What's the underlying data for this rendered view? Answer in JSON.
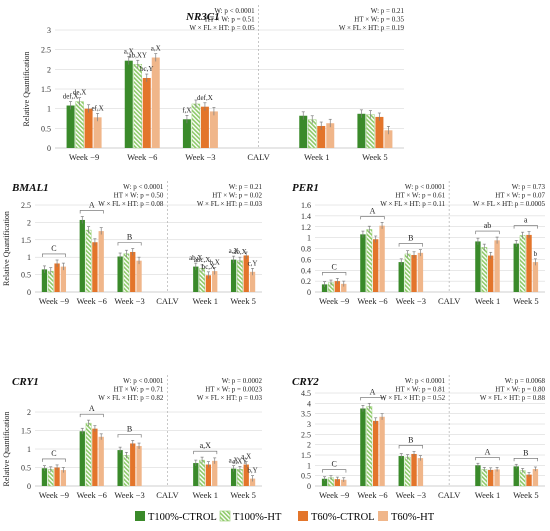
{
  "colors": {
    "T100%-CTROL": "#3a8a2a",
    "T100%-HT": "#8fca6a",
    "T60%-CTROL": "#e3752b",
    "T60%-HT": "#f0b68a",
    "errorbar": "#7f7f7f",
    "grid": "#d0d0d0",
    "axis": "#bfbfbf"
  },
  "legend": {
    "items": [
      {
        "key": "T100%-CTROL",
        "label": "T100%-CTROL",
        "pattern": "solid"
      },
      {
        "key": "T100%-HT",
        "label": "T100%-HT",
        "pattern": "hatch"
      },
      {
        "key": "T60%-CTROL",
        "label": "T60%-CTROL",
        "pattern": "solid"
      },
      {
        "key": "T60%-HT",
        "label": "T60%-HT",
        "pattern": "solid"
      }
    ]
  },
  "chart_data": [
    {
      "type": "bar",
      "title": "NR3C1",
      "ylabel": "Relative Quantification",
      "categories": [
        "Week −9",
        "Week −6",
        "Week −3",
        "CALV",
        "Week 1",
        "Week 5"
      ],
      "ylim": [
        0,
        3
      ],
      "yticks": [
        "0",
        "0.5",
        "1",
        "1.5",
        "2",
        "2.5",
        "3"
      ],
      "yticks_values": [
        0,
        0.5,
        1,
        1.5,
        2,
        2.5,
        3
      ],
      "grid": true,
      "series": [
        {
          "name": "T100%-CTROL",
          "values": [
            1.08,
            2.22,
            0.73,
            null,
            0.82,
            0.87
          ],
          "errors": [
            0.1,
            0.1,
            0.1,
            null,
            0.1,
            0.1
          ]
        },
        {
          "name": "T100%-HT",
          "values": [
            1.18,
            2.13,
            1.12,
            null,
            0.72,
            0.85
          ],
          "errors": [
            0.1,
            0.1,
            0.1,
            null,
            0.1,
            0.1
          ]
        },
        {
          "name": "T60%-CTROL",
          "values": [
            1.0,
            1.78,
            1.05,
            null,
            0.56,
            0.79
          ],
          "errors": [
            0.1,
            0.1,
            0.1,
            null,
            0.1,
            0.1
          ]
        },
        {
          "name": "T60%-HT",
          "values": [
            0.78,
            2.3,
            0.93,
            null,
            0.63,
            0.45
          ],
          "errors": [
            0.1,
            0.1,
            0.1,
            null,
            0.1,
            0.1
          ]
        }
      ],
      "letters": [
        {
          "category": 0,
          "series": 0,
          "text": "def,X"
        },
        {
          "category": 0,
          "series": 1,
          "text": "de,X"
        },
        {
          "category": 0,
          "series": 3,
          "text": "ef,X"
        },
        {
          "category": 1,
          "series": 0,
          "text": "a,X"
        },
        {
          "category": 1,
          "series": 1,
          "text": "ab,XY"
        },
        {
          "category": 1,
          "series": 2,
          "text": "bc,Y"
        },
        {
          "category": 1,
          "series": 3,
          "text": "a,X"
        },
        {
          "category": 2,
          "series": 0,
          "text": "f,X"
        },
        {
          "category": 2,
          "series": 2,
          "text": "def,X"
        }
      ],
      "brackets": [],
      "stats_left": [
        "W: p < 0.0001",
        "HT × W: p = 0.51",
        "W × FL × HT: p = 0.05"
      ],
      "stats_right": [
        "W: p = 0.21",
        "HT × W: p = 0.35",
        "W × FL × HT: p = 0.19"
      ]
    },
    {
      "type": "bar",
      "title": "BMAL1",
      "ylabel": "Relative Quantification",
      "categories": [
        "Week −9",
        "Week −6",
        "Week −3",
        "CALV",
        "Week 1",
        "Week 5"
      ],
      "ylim": [
        0,
        2.5
      ],
      "yticks": [
        "0",
        "0.5",
        "1",
        "1.5",
        "2",
        "2.5"
      ],
      "yticks_values": [
        0,
        0.5,
        1,
        1.5,
        2,
        2.5
      ],
      "grid": true,
      "series": [
        {
          "name": "T100%-CTROL",
          "values": [
            0.65,
            2.07,
            1.02,
            null,
            0.73,
            0.93
          ],
          "errors": [
            0.1,
            0.1,
            0.1,
            null,
            0.1,
            0.1
          ]
        },
        {
          "name": "T100%-HT",
          "values": [
            0.6,
            1.78,
            1.1,
            null,
            0.68,
            0.9
          ],
          "errors": [
            0.1,
            0.1,
            0.1,
            null,
            0.1,
            0.1
          ]
        },
        {
          "name": "T60%-CTROL",
          "values": [
            0.82,
            1.43,
            1.15,
            null,
            0.48,
            1.05
          ],
          "errors": [
            0.1,
            0.1,
            0.1,
            null,
            0.1,
            0.1
          ]
        },
        {
          "name": "T60%-HT",
          "values": [
            0.73,
            1.75,
            0.9,
            null,
            0.6,
            0.58
          ],
          "errors": [
            0.1,
            0.1,
            0.1,
            null,
            0.1,
            0.1
          ]
        }
      ],
      "letters": [
        {
          "category": 4,
          "series": 0,
          "text": "ab,X"
        },
        {
          "category": 4,
          "series": 1,
          "text": "abc,X"
        },
        {
          "category": 4,
          "series": 2,
          "text": "bc,X"
        },
        {
          "category": 4,
          "series": 3,
          "text": "b,X"
        },
        {
          "category": 5,
          "series": 0,
          "text": "a,X"
        },
        {
          "category": 5,
          "series": 1,
          "text": "ab,X"
        },
        {
          "category": 5,
          "series": 3,
          "text": "c,Y"
        }
      ],
      "brackets": [
        {
          "category": 0,
          "label": "C"
        },
        {
          "category": 1,
          "label": "A"
        },
        {
          "category": 2,
          "label": "B"
        }
      ],
      "stats_left": [
        "W: p < 0.0001",
        "HT × W: p = 0.50",
        "W × FL × HT: p = 0.08"
      ],
      "stats_right": [
        "W: p = 0.21",
        "HT × W: p = 0.02",
        "W × FL × HT: p = 0.03"
      ]
    },
    {
      "type": "bar",
      "title": "PER1",
      "ylabel": "",
      "categories": [
        "Week −9",
        "Week −6",
        "Week −3",
        "CALV",
        "Week 1",
        "Week 5"
      ],
      "ylim": [
        0,
        1.6
      ],
      "yticks": [
        "0",
        "0.2",
        "0.4",
        "0.6",
        "0.8",
        "1",
        "1.2",
        "1.4",
        "1.6"
      ],
      "yticks_values": [
        0,
        0.2,
        0.4,
        0.6,
        0.8,
        1,
        1.2,
        1.4,
        1.6
      ],
      "grid": true,
      "series": [
        {
          "name": "T100%-CTROL",
          "values": [
            0.14,
            1.06,
            0.55,
            null,
            0.93,
            0.89
          ],
          "errors": [
            0.05,
            0.06,
            0.06,
            null,
            0.06,
            0.06
          ]
        },
        {
          "name": "T100%-HT",
          "values": [
            0.17,
            1.15,
            0.7,
            null,
            0.82,
            1.04
          ],
          "errors": [
            0.05,
            0.06,
            0.06,
            null,
            0.06,
            0.06
          ]
        },
        {
          "name": "T60%-CTROL",
          "values": [
            0.2,
            0.97,
            0.68,
            null,
            0.67,
            1.05
          ],
          "errors": [
            0.05,
            0.06,
            0.06,
            null,
            0.06,
            0.06
          ]
        },
        {
          "name": "T60%-HT",
          "values": [
            0.15,
            1.22,
            0.72,
            null,
            0.95,
            0.55
          ],
          "errors": [
            0.05,
            0.06,
            0.06,
            null,
            0.06,
            0.06
          ]
        }
      ],
      "letters": [
        {
          "category": 5,
          "series": 3,
          "text": "b"
        }
      ],
      "brackets": [
        {
          "category": 0,
          "label": "C"
        },
        {
          "category": 1,
          "label": "A"
        },
        {
          "category": 2,
          "label": "B"
        },
        {
          "category": 4,
          "label": "ab"
        },
        {
          "category": 5,
          "label": "a"
        }
      ],
      "stats_left": [
        "W: p < 0.0001",
        "HT × W: p = 0.61",
        "W × FL × HT: p = 0.11"
      ],
      "stats_right": [
        "W: p = 0.73",
        "HT × W: p = 0.07",
        "W × FL × HT: p = 0.0005"
      ]
    },
    {
      "type": "bar",
      "title": "CRY1",
      "ylabel": "Relative Quantification",
      "categories": [
        "Week −9",
        "Week −6",
        "Week −3",
        "CALV",
        "Week 1",
        "Week 5"
      ],
      "ylim": [
        0,
        2
      ],
      "yticks": [
        "0",
        "0.5",
        "1",
        "1.5",
        "2"
      ],
      "yticks_values": [
        0,
        0.5,
        1,
        1.5,
        2
      ],
      "grid": true,
      "series": [
        {
          "name": "T100%-CTROL",
          "values": [
            0.48,
            1.48,
            0.97,
            null,
            0.62,
            0.47
          ],
          "errors": [
            0.07,
            0.08,
            0.08,
            null,
            0.08,
            0.08
          ]
        },
        {
          "name": "T100%-HT",
          "values": [
            0.45,
            1.7,
            0.83,
            null,
            0.7,
            0.45
          ],
          "errors": [
            0.07,
            0.08,
            0.08,
            null,
            0.08,
            0.08
          ]
        },
        {
          "name": "T60%-CTROL",
          "values": [
            0.5,
            1.55,
            1.15,
            null,
            0.58,
            0.58
          ],
          "errors": [
            0.07,
            0.08,
            0.08,
            null,
            0.08,
            0.08
          ]
        },
        {
          "name": "T60%-HT",
          "values": [
            0.43,
            1.33,
            1.08,
            null,
            0.68,
            0.2
          ],
          "errors": [
            0.07,
            0.08,
            0.08,
            null,
            0.08,
            0.08
          ]
        }
      ],
      "letters": [
        {
          "category": 5,
          "series": 0,
          "text": "a,X"
        },
        {
          "category": 5,
          "series": 1,
          "text": "a,XY"
        },
        {
          "category": 5,
          "series": 2,
          "text": "a,X"
        },
        {
          "category": 5,
          "series": 3,
          "text": "b,Y"
        }
      ],
      "brackets": [
        {
          "category": 0,
          "label": "C"
        },
        {
          "category": 1,
          "label": "A"
        },
        {
          "category": 2,
          "label": "B"
        },
        {
          "category": 4,
          "label": "a,X"
        }
      ],
      "stats_left": [
        "W: p < 0.0001",
        "HT × W: p = 0.71",
        "W × FL × HT: p = 0.82"
      ],
      "stats_right": [
        "W: p = 0.0002",
        "HT × W: p = 0.0023",
        "W × FL × HT: p = 0.03"
      ]
    },
    {
      "type": "bar",
      "title": "CRY2",
      "ylabel": "",
      "categories": [
        "Week −9",
        "Week −6",
        "Week −3",
        "CALV",
        "Week 1",
        "Week 5"
      ],
      "ylim": [
        0,
        4.5
      ],
      "yticks": [
        "0",
        "0.5",
        "1",
        "1.5",
        "2",
        "2.5",
        "3",
        "3.5",
        "4",
        "4.5"
      ],
      "yticks_values": [
        0,
        0.5,
        1,
        1.5,
        2,
        2.5,
        3,
        3.5,
        4,
        4.5
      ],
      "grid": true,
      "series": [
        {
          "name": "T100%-CTROL",
          "values": [
            0.35,
            3.75,
            1.45,
            null,
            1.0,
            0.95
          ],
          "errors": [
            0.1,
            0.15,
            0.12,
            null,
            0.1,
            0.1
          ]
        },
        {
          "name": "T100%-HT",
          "values": [
            0.4,
            3.85,
            1.4,
            null,
            0.8,
            0.75
          ],
          "errors": [
            0.1,
            0.15,
            0.12,
            null,
            0.1,
            0.1
          ]
        },
        {
          "name": "T60%-CTROL",
          "values": [
            0.33,
            3.15,
            1.55,
            null,
            0.78,
            0.55
          ],
          "errors": [
            0.1,
            0.15,
            0.12,
            null,
            0.1,
            0.1
          ]
        },
        {
          "name": "T60%-HT",
          "values": [
            0.3,
            3.35,
            1.35,
            null,
            0.8,
            0.82
          ],
          "errors": [
            0.1,
            0.15,
            0.12,
            null,
            0.1,
            0.1
          ]
        }
      ],
      "letters": [],
      "brackets": [
        {
          "category": 0,
          "label": "C"
        },
        {
          "category": 1,
          "label": "A"
        },
        {
          "category": 2,
          "label": "B"
        },
        {
          "category": 4,
          "label": "A"
        },
        {
          "category": 5,
          "label": "B"
        }
      ],
      "stats_left": [
        "W: p < 0.0001",
        "HT × W: p = 0.81",
        "W × FL × HT: p = 0.52"
      ],
      "stats_right": [
        "W: p = 0.0068",
        "HT × W: p = 0.80",
        "W × FL × HT: p = 0.88"
      ]
    }
  ]
}
